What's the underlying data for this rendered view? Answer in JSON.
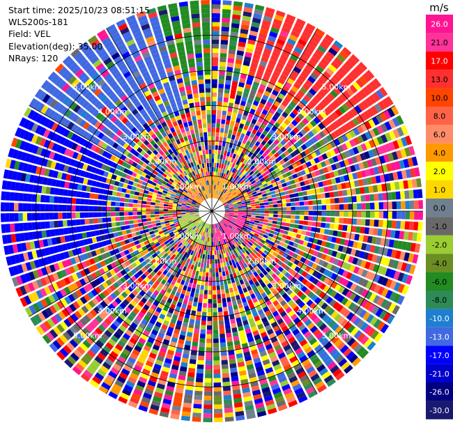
{
  "info": {
    "start_time": "Start time: 2025/10/23 08:51:15",
    "site": "WLS200s-181",
    "field": "Field: VEL",
    "elevation": "Elevation(deg): 35.00",
    "nrays": "NRays: 120"
  },
  "colorbar": {
    "unit": "m/s",
    "labels": [
      "26.0",
      "21.0",
      "17.0",
      "13.0",
      "10.0",
      "8.0",
      "6.0",
      "4.0",
      "2.0",
      "1.0",
      "0.0",
      "-1.0",
      "-2.0",
      "-4.0",
      "-6.0",
      "-8.0",
      "-10.0",
      "-13.0",
      "-17.0",
      "-21.0",
      "-26.0",
      "-30.0"
    ],
    "colors": [
      "#ff1493",
      "#ff3399",
      "#ff0000",
      "#ff3030",
      "#ff4500",
      "#ff6347",
      "#ff8c69",
      "#ff9900",
      "#ffff00",
      "#ffd700",
      "#708090",
      "#696969",
      "#9acd32",
      "#6b8e23",
      "#228b22",
      "#2e8b57",
      "#1e7fd0",
      "#4169e1",
      "#0000ff",
      "#0000cd",
      "#000080",
      "#191970"
    ]
  },
  "chart_data": {
    "type": "ppi",
    "field": "VEL",
    "unit": "m/s",
    "elevation_deg": 35.0,
    "n_rays": 120,
    "max_range_km": 6.0,
    "range_rings_km": [
      1.0,
      2.0,
      3.0,
      4.0,
      5.0
    ],
    "ring_labels": [
      "1.00km",
      "2.00km",
      "3.00km",
      "4.00km",
      "5.00km"
    ],
    "spoke_angles_deg": [
      0,
      30,
      60,
      90,
      120,
      150,
      180,
      210,
      240,
      270,
      300,
      330
    ],
    "sectors": [
      {
        "from_az": 300,
        "to_az": 345,
        "r_min_km": 3.0,
        "r_max_km": 6.0,
        "class": "-13.0"
      },
      {
        "from_az": 345,
        "to_az": 360,
        "r_min_km": 4.0,
        "r_max_km": 6.0,
        "class": "-6.0"
      },
      {
        "from_az": 250,
        "to_az": 300,
        "r_min_km": 3.0,
        "r_max_km": 6.0,
        "class": "-17.0"
      },
      {
        "from_az": 15,
        "to_az": 60,
        "r_min_km": 4.0,
        "r_max_km": 6.0,
        "class": "13.0"
      },
      {
        "from_az": 300,
        "to_az": 60,
        "r_min_km": 0.3,
        "r_max_km": 1.0,
        "class": "4.0"
      },
      {
        "from_az": 180,
        "to_az": 270,
        "r_min_km": 0.3,
        "r_max_km": 1.0,
        "class": "-2.0"
      },
      {
        "from_az": 90,
        "to_az": 180,
        "r_min_km": 0.3,
        "r_max_km": 1.0,
        "class": "26.0"
      }
    ]
  }
}
